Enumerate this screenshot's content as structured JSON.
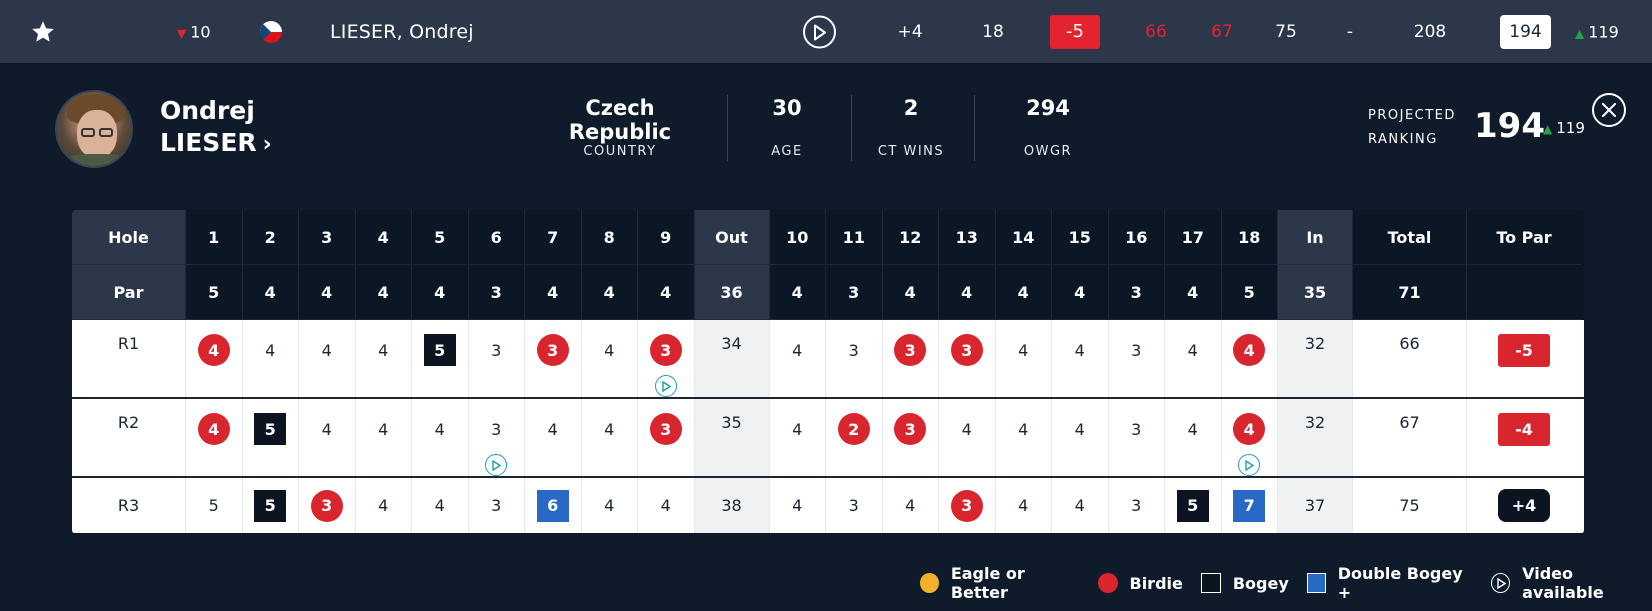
{
  "topbar": {
    "movement": "10",
    "country_flag": "Czech Republic",
    "player_name": "LIESER, Ondrej",
    "today": "+4",
    "thru": "18",
    "to_par": "-5",
    "r1": "66",
    "r2": "67",
    "r3": "75",
    "r4": "-",
    "total": "208",
    "projected_rank": "194",
    "projected_move": "119"
  },
  "player": {
    "first_name": "Ondrej",
    "last_name": "LIESER",
    "country": "Czech Republic",
    "country_label": "COUNTRY",
    "age": "30",
    "age_label": "AGE",
    "ct_wins": "2",
    "ct_wins_label": "CT WINS",
    "owgr": "294",
    "owgr_label": "OWGR",
    "projected_label_1": "PROJECTED",
    "projected_label_2": "RANKING",
    "projected_rank": "194",
    "projected_move": "119"
  },
  "scorecard": {
    "hole_label": "Hole",
    "par_label": "Par",
    "holes_front": [
      "1",
      "2",
      "3",
      "4",
      "5",
      "6",
      "7",
      "8",
      "9"
    ],
    "out_label": "Out",
    "holes_back": [
      "10",
      "11",
      "12",
      "13",
      "14",
      "15",
      "16",
      "17",
      "18"
    ],
    "in_label": "In",
    "total_label": "Total",
    "topar_label": "To Par",
    "par_front": [
      "5",
      "4",
      "4",
      "4",
      "4",
      "3",
      "4",
      "4",
      "4"
    ],
    "par_out": "36",
    "par_back": [
      "4",
      "3",
      "4",
      "4",
      "4",
      "4",
      "3",
      "4",
      "5"
    ],
    "par_in": "35",
    "par_total": "71",
    "rounds": [
      {
        "label": "R1",
        "front": [
          {
            "s": "4",
            "t": "birdie"
          },
          {
            "s": "4",
            "t": "par"
          },
          {
            "s": "4",
            "t": "par"
          },
          {
            "s": "4",
            "t": "par"
          },
          {
            "s": "5",
            "t": "bogey"
          },
          {
            "s": "3",
            "t": "par"
          },
          {
            "s": "3",
            "t": "birdie"
          },
          {
            "s": "4",
            "t": "par"
          },
          {
            "s": "3",
            "t": "birdie",
            "video": true
          }
        ],
        "out": "34",
        "back": [
          {
            "s": "4",
            "t": "par"
          },
          {
            "s": "3",
            "t": "par"
          },
          {
            "s": "3",
            "t": "birdie"
          },
          {
            "s": "3",
            "t": "birdie"
          },
          {
            "s": "4",
            "t": "par"
          },
          {
            "s": "4",
            "t": "par"
          },
          {
            "s": "3",
            "t": "par"
          },
          {
            "s": "4",
            "t": "par"
          },
          {
            "s": "4",
            "t": "birdie"
          }
        ],
        "in": "32",
        "total": "66",
        "to_par": "-5",
        "to_par_type": "under"
      },
      {
        "label": "R2",
        "front": [
          {
            "s": "4",
            "t": "birdie"
          },
          {
            "s": "5",
            "t": "bogey"
          },
          {
            "s": "4",
            "t": "par"
          },
          {
            "s": "4",
            "t": "par"
          },
          {
            "s": "4",
            "t": "par"
          },
          {
            "s": "3",
            "t": "par",
            "video": true
          },
          {
            "s": "4",
            "t": "par"
          },
          {
            "s": "4",
            "t": "par"
          },
          {
            "s": "3",
            "t": "birdie"
          }
        ],
        "out": "35",
        "back": [
          {
            "s": "4",
            "t": "par"
          },
          {
            "s": "2",
            "t": "birdie"
          },
          {
            "s": "3",
            "t": "birdie"
          },
          {
            "s": "4",
            "t": "par"
          },
          {
            "s": "4",
            "t": "par"
          },
          {
            "s": "4",
            "t": "par"
          },
          {
            "s": "3",
            "t": "par"
          },
          {
            "s": "4",
            "t": "par"
          },
          {
            "s": "4",
            "t": "birdie",
            "video": true
          }
        ],
        "in": "32",
        "total": "67",
        "to_par": "-4",
        "to_par_type": "under"
      },
      {
        "label": "R3",
        "front": [
          {
            "s": "5",
            "t": "par"
          },
          {
            "s": "5",
            "t": "bogey"
          },
          {
            "s": "3",
            "t": "birdie"
          },
          {
            "s": "4",
            "t": "par"
          },
          {
            "s": "4",
            "t": "par"
          },
          {
            "s": "3",
            "t": "par"
          },
          {
            "s": "6",
            "t": "double"
          },
          {
            "s": "4",
            "t": "par"
          },
          {
            "s": "4",
            "t": "par"
          }
        ],
        "out": "38",
        "back": [
          {
            "s": "4",
            "t": "par"
          },
          {
            "s": "3",
            "t": "par"
          },
          {
            "s": "4",
            "t": "par"
          },
          {
            "s": "3",
            "t": "birdie"
          },
          {
            "s": "4",
            "t": "par"
          },
          {
            "s": "4",
            "t": "par"
          },
          {
            "s": "3",
            "t": "par"
          },
          {
            "s": "5",
            "t": "bogey"
          },
          {
            "s": "7",
            "t": "double"
          }
        ],
        "in": "37",
        "total": "75",
        "to_par": "+4",
        "to_par_type": "over"
      }
    ]
  },
  "legend": {
    "eagle": "Eagle or Better",
    "birdie": "Birdie",
    "bogey": "Bogey",
    "double": "Double Bogey +",
    "video": "Video available"
  },
  "colors": {
    "birdie": "#d9252e",
    "bogey": "#0c1422",
    "double": "#2769c4",
    "eagle": "#f2b12a",
    "up": "#1fa344",
    "down": "#e32330",
    "video": "#1fa0a8"
  }
}
